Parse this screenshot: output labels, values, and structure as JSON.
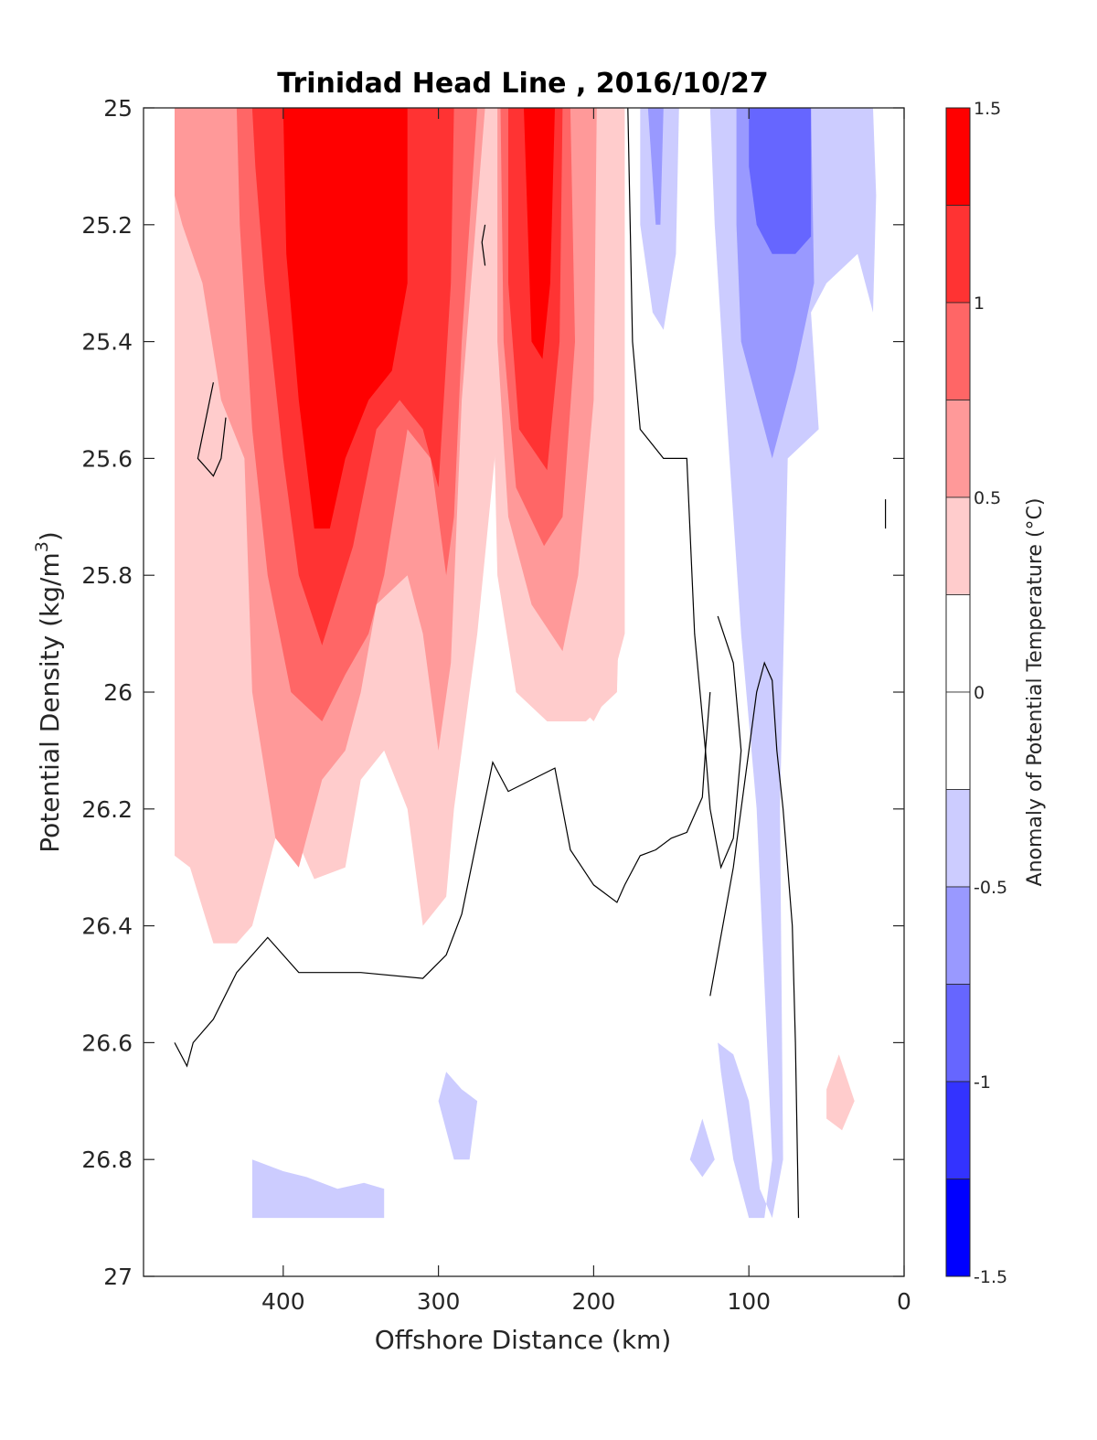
{
  "chart_data": {
    "type": "filled-contour",
    "title": "Trinidad Head Line , 2016/10/27",
    "xlabel": "Offshore Distance (km)",
    "ylabel_main": "Potential Density (kg/m",
    "ylabel_sup": "3",
    "ylabel_close": ")",
    "xlim": [
      490,
      0
    ],
    "x_reversed": true,
    "ylim": [
      25,
      27
    ],
    "y_reversed": true,
    "xticks": [
      400,
      300,
      200,
      100,
      0
    ],
    "xtick_labels": [
      "400",
      "300",
      "200",
      "100",
      "0"
    ],
    "yticks": [
      25,
      25.2,
      25.4,
      25.6,
      25.8,
      26,
      26.2,
      26.4,
      26.6,
      26.8,
      27
    ],
    "ytick_labels": [
      "25",
      "25.2",
      "25.4",
      "25.6",
      "25.8",
      "26",
      "26.2",
      "26.4",
      "26.6",
      "26.8",
      "27"
    ],
    "grid": false,
    "colorbar": {
      "label": "Anomaly of Potential Temperature (°C)",
      "range": [
        -1.5,
        1.5
      ],
      "ticks": [
        1.5,
        1,
        0.5,
        0,
        -0.5,
        -1,
        -1.5
      ],
      "tick_labels": [
        "1.5",
        "1",
        "0.5",
        "0",
        "-0.5",
        "-1",
        "-1.5"
      ],
      "levels": [
        {
          "from": 1.25,
          "to": 1.5,
          "color": "#ff0000"
        },
        {
          "from": 1.0,
          "to": 1.25,
          "color": "#ff3333"
        },
        {
          "from": 0.75,
          "to": 1.0,
          "color": "#ff6666"
        },
        {
          "from": 0.5,
          "to": 0.75,
          "color": "#ff9999"
        },
        {
          "from": 0.25,
          "to": 0.5,
          "color": "#ffcccc"
        },
        {
          "from": 0.0,
          "to": 0.25,
          "color": "#ffffff"
        },
        {
          "from": -0.25,
          "to": 0.0,
          "color": "#ffffff"
        },
        {
          "from": -0.5,
          "to": -0.25,
          "color": "#ccccff"
        },
        {
          "from": -0.75,
          "to": -0.5,
          "color": "#9999ff"
        },
        {
          "from": -1.0,
          "to": -0.75,
          "color": "#6666ff"
        },
        {
          "from": -1.25,
          "to": -1.0,
          "color": "#3333ff"
        },
        {
          "from": -1.5,
          "to": -1.25,
          "color": "#0000ff"
        }
      ],
      "placement": "right"
    },
    "regions": [
      {
        "name": "warm-core-offshore-0.25",
        "color": "#ffcccc",
        "points": [
          [
            470,
            25
          ],
          [
            180,
            25
          ],
          [
            180,
            25.9
          ],
          [
            190,
            26.0
          ],
          [
            200,
            26.05
          ],
          [
            235,
            25.95
          ],
          [
            260,
            25.5
          ],
          [
            275,
            25.9
          ],
          [
            290,
            26.2
          ],
          [
            295,
            26.35
          ],
          [
            310,
            26.4
          ],
          [
            320,
            26.2
          ],
          [
            335,
            26.1
          ],
          [
            350,
            26.15
          ],
          [
            360,
            26.3
          ],
          [
            380,
            26.32
          ],
          [
            400,
            26.2
          ],
          [
            420,
            26.4
          ],
          [
            430,
            26.43
          ],
          [
            445,
            26.43
          ],
          [
            460,
            26.3
          ],
          [
            470,
            26.28
          ]
        ]
      },
      {
        "name": "warm-core-0.5",
        "color": "#ff9999",
        "points": [
          [
            470,
            25
          ],
          [
            270,
            25
          ],
          [
            285,
            25.5
          ],
          [
            292,
            25.95
          ],
          [
            300,
            26.1
          ],
          [
            310,
            25.9
          ],
          [
            320,
            25.8
          ],
          [
            340,
            25.85
          ],
          [
            350,
            26.0
          ],
          [
            360,
            26.1
          ],
          [
            375,
            26.15
          ],
          [
            390,
            26.3
          ],
          [
            405,
            26.25
          ],
          [
            420,
            26.0
          ],
          [
            425,
            25.6
          ],
          [
            440,
            25.5
          ],
          [
            452,
            25.3
          ],
          [
            465,
            25.2
          ],
          [
            470,
            25.15
          ]
        ]
      },
      {
        "name": "warm-core-0.75",
        "color": "#ff6666",
        "points": [
          [
            430,
            25
          ],
          [
            275,
            25
          ],
          [
            285,
            25.4
          ],
          [
            290,
            25.7
          ],
          [
            295,
            25.8
          ],
          [
            305,
            25.6
          ],
          [
            320,
            25.55
          ],
          [
            335,
            25.8
          ],
          [
            345,
            25.9
          ],
          [
            360,
            25.97
          ],
          [
            375,
            26.05
          ],
          [
            395,
            26.0
          ],
          [
            410,
            25.8
          ],
          [
            420,
            25.55
          ],
          [
            428,
            25.2
          ]
        ]
      },
      {
        "name": "warm-core-1.0",
        "color": "#ff3333",
        "points": [
          [
            420,
            25
          ],
          [
            290,
            25
          ],
          [
            292,
            25.3
          ],
          [
            300,
            25.65
          ],
          [
            310,
            25.55
          ],
          [
            325,
            25.5
          ],
          [
            340,
            25.55
          ],
          [
            355,
            25.75
          ],
          [
            375,
            25.92
          ],
          [
            390,
            25.8
          ],
          [
            400,
            25.6
          ],
          [
            412,
            25.3
          ],
          [
            418,
            25.1
          ]
        ]
      },
      {
        "name": "warm-core-1.25",
        "color": "#ff0000",
        "points": [
          [
            400,
            25
          ],
          [
            320,
            25
          ],
          [
            320,
            25.3
          ],
          [
            330,
            25.45
          ],
          [
            345,
            25.5
          ],
          [
            360,
            25.6
          ],
          [
            370,
            25.72
          ],
          [
            380,
            25.72
          ],
          [
            390,
            25.5
          ],
          [
            398,
            25.25
          ]
        ]
      },
      {
        "name": "warm-tongue-0.5",
        "color": "#ffcccc",
        "points": [
          [
            188,
            25
          ],
          [
            262,
            25
          ],
          [
            262,
            25.15
          ],
          [
            265,
            25.45
          ],
          [
            262,
            25.8
          ],
          [
            250,
            26.0
          ],
          [
            230,
            26.05
          ],
          [
            205,
            26.05
          ],
          [
            185,
            26.0
          ],
          [
            183,
            25.8
          ],
          [
            185,
            25.4
          ]
        ]
      },
      {
        "name": "warm-tongue-0.75",
        "color": "#ff9999",
        "points": [
          [
            198,
            25
          ],
          [
            262,
            25
          ],
          [
            262,
            25.4
          ],
          [
            255,
            25.7
          ],
          [
            240,
            25.85
          ],
          [
            220,
            25.93
          ],
          [
            210,
            25.8
          ],
          [
            200,
            25.5
          ]
        ]
      },
      {
        "name": "warm-tongue-1.0",
        "color": "#ff6666",
        "points": [
          [
            215,
            25
          ],
          [
            260,
            25
          ],
          [
            258,
            25.4
          ],
          [
            250,
            25.65
          ],
          [
            232,
            25.75
          ],
          [
            220,
            25.7
          ],
          [
            212,
            25.4
          ]
        ]
      },
      {
        "name": "warm-tongue-1.25",
        "color": "#ff3333",
        "points": [
          [
            220,
            25
          ],
          [
            255,
            25
          ],
          [
            255,
            25.3
          ],
          [
            248,
            25.55
          ],
          [
            230,
            25.62
          ],
          [
            222,
            25.4
          ]
        ]
      },
      {
        "name": "warm-tongue-1.5",
        "color": "#ff0000",
        "points": [
          [
            225,
            25
          ],
          [
            245,
            25
          ],
          [
            240,
            25.4
          ],
          [
            233,
            25.43
          ],
          [
            228,
            25.3
          ]
        ]
      },
      {
        "name": "warm-small-coastal",
        "color": "#ffcccc",
        "points": [
          [
            42,
            26.62
          ],
          [
            32,
            26.7
          ],
          [
            40,
            26.75
          ],
          [
            50,
            26.73
          ],
          [
            50,
            26.68
          ]
        ]
      },
      {
        "name": "cold-nearshore-0.25-a",
        "color": "#ccccff",
        "points": [
          [
            170,
            25
          ],
          [
            145,
            25
          ],
          [
            147,
            25.25
          ],
          [
            155,
            25.38
          ],
          [
            162,
            25.35
          ],
          [
            170,
            25.2
          ]
        ]
      },
      {
        "name": "cold-nearshore-0.5-a",
        "color": "#9999ff",
        "points": [
          [
            165,
            25
          ],
          [
            155,
            25
          ],
          [
            157,
            25.2
          ],
          [
            160,
            25.2
          ]
        ]
      },
      {
        "name": "cold-main-0.25",
        "color": "#ccccff",
        "points": [
          [
            125,
            25
          ],
          [
            20,
            25
          ],
          [
            18,
            25.15
          ],
          [
            20,
            25.35
          ],
          [
            30,
            25.25
          ],
          [
            50,
            25.3
          ],
          [
            60,
            25.35
          ],
          [
            55,
            25.55
          ],
          [
            75,
            25.6
          ],
          [
            80,
            26.2
          ],
          [
            78,
            26.8
          ],
          [
            85,
            26.9
          ],
          [
            93,
            26.85
          ],
          [
            100,
            26.7
          ],
          [
            110,
            26.62
          ],
          [
            120,
            26.6
          ],
          [
            118,
            26.65
          ],
          [
            110,
            26.8
          ],
          [
            100,
            26.9
          ],
          [
            90,
            26.9
          ],
          [
            85,
            26.8
          ],
          [
            95,
            26.2
          ],
          [
            105,
            25.9
          ],
          [
            115,
            25.5
          ],
          [
            122,
            25.2
          ]
        ]
      },
      {
        "name": "cold-main-0.5",
        "color": "#9999ff",
        "points": [
          [
            108,
            25
          ],
          [
            60,
            25
          ],
          [
            58,
            25.3
          ],
          [
            70,
            25.45
          ],
          [
            85,
            25.6
          ],
          [
            95,
            25.5
          ],
          [
            105,
            25.4
          ],
          [
            108,
            25.2
          ]
        ]
      },
      {
        "name": "cold-main-0.75",
        "color": "#6666ff",
        "points": [
          [
            100,
            25
          ],
          [
            60,
            25
          ],
          [
            60,
            25.22
          ],
          [
            70,
            25.25
          ],
          [
            85,
            25.25
          ],
          [
            95,
            25.2
          ],
          [
            100,
            25.1
          ]
        ]
      },
      {
        "name": "cold-deep-left",
        "color": "#ccccff",
        "points": [
          [
            420,
            26.8
          ],
          [
            400,
            26.82
          ],
          [
            385,
            26.83
          ],
          [
            365,
            26.85
          ],
          [
            348,
            26.84
          ],
          [
            335,
            26.85
          ],
          [
            335,
            26.9
          ],
          [
            420,
            26.9
          ]
        ]
      },
      {
        "name": "cold-deep-mid",
        "color": "#ccccff",
        "points": [
          [
            295,
            26.65
          ],
          [
            285,
            26.68
          ],
          [
            275,
            26.7
          ],
          [
            280,
            26.8
          ],
          [
            290,
            26.8
          ],
          [
            300,
            26.7
          ]
        ]
      },
      {
        "name": "cold-deep-small",
        "color": "#ccccff",
        "points": [
          [
            130,
            26.73
          ],
          [
            122,
            26.8
          ],
          [
            130,
            26.83
          ],
          [
            138,
            26.8
          ]
        ]
      }
    ],
    "zero_contours": [
      {
        "name": "zero-contour-main",
        "points": [
          [
            470,
            26.6
          ],
          [
            462,
            26.64
          ],
          [
            458,
            26.6
          ],
          [
            445,
            26.56
          ],
          [
            430,
            26.48
          ],
          [
            410,
            26.42
          ],
          [
            390,
            26.48
          ],
          [
            350,
            26.48
          ],
          [
            310,
            26.49
          ],
          [
            295,
            26.45
          ],
          [
            285,
            26.38
          ],
          [
            275,
            26.25
          ],
          [
            265,
            26.12
          ],
          [
            255,
            26.17
          ],
          [
            225,
            26.13
          ],
          [
            215,
            26.27
          ],
          [
            200,
            26.33
          ],
          [
            185,
            26.36
          ],
          [
            180,
            26.33
          ],
          [
            170,
            26.28
          ],
          [
            160,
            26.27
          ],
          [
            150,
            26.25
          ],
          [
            140,
            26.24
          ],
          [
            130,
            26.18
          ],
          [
            128,
            26.1
          ],
          [
            135,
            25.9
          ],
          [
            140,
            25.6
          ],
          [
            155,
            25.6
          ],
          [
            170,
            25.55
          ],
          [
            175,
            25.4
          ],
          [
            178,
            25
          ]
        ]
      },
      {
        "name": "zero-contour-loop-mid",
        "points": [
          [
            120,
            25.87
          ],
          [
            110,
            25.95
          ],
          [
            105,
            26.1
          ],
          [
            110,
            26.25
          ],
          [
            118,
            26.3
          ],
          [
            125,
            26.2
          ],
          [
            128,
            26.1
          ],
          [
            125,
            26.0
          ]
        ]
      },
      {
        "name": "zero-contour-coastal",
        "points": [
          [
            68,
            26.9
          ],
          [
            70,
            26.6
          ],
          [
            72,
            26.4
          ],
          [
            78,
            26.2
          ],
          [
            82,
            26.1
          ],
          [
            85,
            25.98
          ],
          [
            90,
            25.95
          ],
          [
            95,
            26.0
          ],
          [
            100,
            26.1
          ],
          [
            110,
            26.3
          ],
          [
            125,
            26.52
          ]
        ]
      },
      {
        "name": "zero-contour-small-a",
        "points": [
          [
            445,
            25.47
          ],
          [
            455,
            25.6
          ],
          [
            445,
            25.63
          ],
          [
            440,
            25.6
          ],
          [
            437,
            25.53
          ]
        ]
      },
      {
        "name": "zero-contour-small-b",
        "points": [
          [
            270,
            25.2
          ],
          [
            272,
            25.23
          ],
          [
            270,
            25.27
          ]
        ]
      },
      {
        "name": "zero-contour-small-c",
        "points": [
          [
            12,
            25.67
          ],
          [
            12,
            25.72
          ]
        ]
      }
    ]
  }
}
